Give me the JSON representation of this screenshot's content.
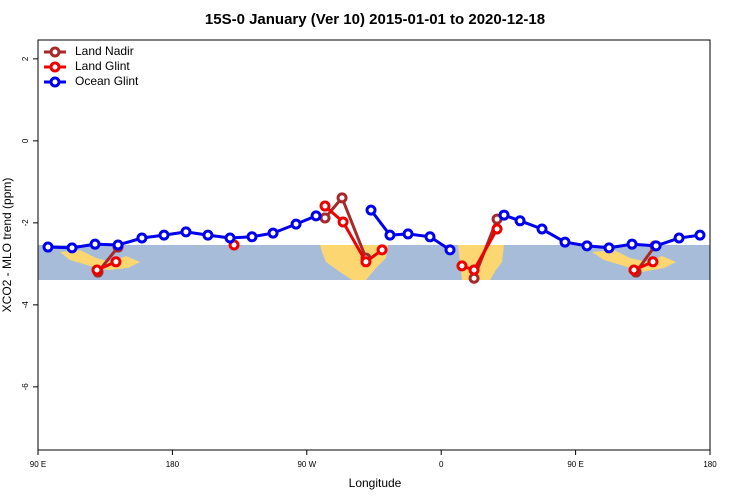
{
  "chart_data": {
    "type": "line",
    "title": "15S-0 January (Ver 10)   2015-01-01 to 2020-12-18",
    "xlabel": "Longitude",
    "ylabel": "XCO2 - MLO trend (ppm)",
    "xlim": [
      90,
      540
    ],
    "xticks": [
      {
        "value": 90,
        "label": "90 E"
      },
      180,
      {
        "value": 270,
        "label": "90 W"
      },
      {
        "value": 360,
        "label": "0"
      },
      {
        "value": 450,
        "label": "90 E"
      },
      {
        "value": 540,
        "label": "180"
      }
    ],
    "ylim": [
      -7.54,
      2.46
    ],
    "yticks": [
      -6,
      -4,
      -2,
      0,
      2
    ],
    "legend": "top-left",
    "series": [
      {
        "name": "Land Nadir",
        "color": "#a52a2a",
        "x": [
          130.2,
          143.6,
          null,
          282.2,
          293.6,
          309.6,
          null,
          382.0,
          397.4,
          null,
          490.5,
          503.2
        ],
        "values": [
          -3.2,
          -2.59,
          null,
          -1.88,
          -1.39,
          -2.86,
          null,
          -3.35,
          -1.91,
          null,
          -3.2,
          -2.56
        ]
      },
      {
        "name": "Land Glint",
        "color": "#ee0000",
        "x": [
          129.5,
          142.2,
          null,
          221.3,
          null,
          282.2,
          294.3,
          309.6,
          320.4,
          null,
          373.9,
          382.0,
          397.4,
          null,
          489.1,
          501.8
        ],
        "values": [
          -3.15,
          -2.95,
          null,
          -2.54,
          null,
          -1.59,
          -1.98,
          -2.95,
          -2.66,
          null,
          -3.05,
          -3.15,
          -2.15,
          null,
          -3.15,
          -2.95
        ]
      },
      {
        "name": "Ocean Glint",
        "color": "#0000ee",
        "x": [
          96.7,
          112.8,
          128.2,
          143.6,
          159.6,
          174.4,
          189.1,
          203.8,
          218.6,
          233.3,
          247.4,
          262.8,
          276.2,
          null,
          313.0,
          325.7,
          337.8,
          352.5,
          365.9,
          null,
          402.1,
          412.8,
          427.5,
          442.9,
          457.6,
          472.4,
          487.8,
          503.9,
          519.3,
          533.3
        ],
        "values": [
          -2.59,
          -2.61,
          -2.52,
          -2.54,
          -2.37,
          -2.3,
          -2.22,
          -2.3,
          -2.37,
          -2.34,
          -2.25,
          -2.03,
          -1.83,
          null,
          -1.69,
          -2.3,
          -2.27,
          -2.34,
          -2.66,
          null,
          -1.81,
          -1.95,
          -2.15,
          -2.47,
          -2.56,
          -2.61,
          -2.52,
          -2.56,
          -2.37,
          -2.3
        ]
      }
    ]
  }
}
